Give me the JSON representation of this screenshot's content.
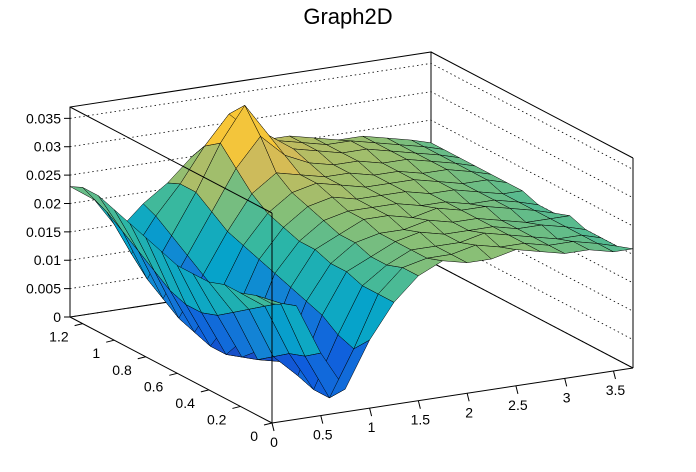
{
  "chart_data": {
    "type": "surface3d",
    "title": "Graph2D",
    "xlabel": "",
    "ylabel": "",
    "zlabel": "",
    "xlim": [
      0,
      3.7
    ],
    "ylim": [
      0,
      1.28
    ],
    "zlim": [
      0,
      0.037
    ],
    "x_ticks": [
      "0",
      "0.5",
      "1",
      "1.5",
      "2",
      "2.5",
      "3",
      "3.5"
    ],
    "y_ticks": [
      "0",
      "0.2",
      "0.4",
      "0.6",
      "0.8",
      "1",
      "1.2"
    ],
    "z_ticks": [
      "0",
      "0.005",
      "0.01",
      "0.015",
      "0.02",
      "0.025",
      "0.03",
      "0.035"
    ],
    "colormap": [
      "#352a87",
      "#0f5cdd",
      "#1481d6",
      "#06a4ca",
      "#2eb7a4",
      "#87bf77",
      "#d1bb59",
      "#fec832",
      "#f9fb0e"
    ],
    "x_grid": [
      0,
      0.25,
      0.5,
      0.75,
      1,
      1.25,
      1.5,
      1.75,
      2,
      2.25,
      2.5,
      2.75,
      3,
      3.25,
      3.5,
      3.7
    ],
    "y_grid": [
      0,
      0.1,
      0.2,
      0.3,
      0.4,
      0.5,
      0.6,
      0.7,
      0.8,
      0.9,
      1.0,
      1.1,
      1.2,
      1.28
    ],
    "z_values": [
      [
        0.021,
        0.02,
        0.011,
        0.004,
        0.012,
        0.018,
        0.022,
        0.024,
        0.023,
        0.023,
        0.024,
        0.023,
        0.022,
        0.022,
        0.021,
        0.021
      ],
      [
        0.021,
        0.019,
        0.009,
        0.001,
        0.009,
        0.018,
        0.022,
        0.023,
        0.023,
        0.024,
        0.023,
        0.023,
        0.022,
        0.022,
        0.021,
        0.02
      ],
      [
        0.02,
        0.017,
        0.008,
        0.001,
        0.01,
        0.018,
        0.021,
        0.023,
        0.023,
        0.023,
        0.024,
        0.023,
        0.022,
        0.021,
        0.021,
        0.02
      ],
      [
        0.02,
        0.015,
        0.006,
        0.002,
        0.012,
        0.019,
        0.021,
        0.023,
        0.024,
        0.023,
        0.023,
        0.023,
        0.022,
        0.022,
        0.021,
        0.02
      ],
      [
        0.019,
        0.013,
        0.004,
        0.003,
        0.013,
        0.019,
        0.022,
        0.023,
        0.023,
        0.024,
        0.023,
        0.023,
        0.022,
        0.021,
        0.021,
        0.021
      ],
      [
        0.019,
        0.011,
        0.003,
        0.004,
        0.014,
        0.02,
        0.022,
        0.024,
        0.024,
        0.023,
        0.024,
        0.023,
        0.023,
        0.022,
        0.021,
        0.02
      ],
      [
        0.019,
        0.01,
        0.002,
        0.005,
        0.015,
        0.02,
        0.023,
        0.024,
        0.024,
        0.024,
        0.023,
        0.023,
        0.022,
        0.022,
        0.021,
        0.02
      ],
      [
        0.02,
        0.01,
        0.002,
        0.007,
        0.016,
        0.021,
        0.024,
        0.025,
        0.024,
        0.024,
        0.024,
        0.023,
        0.023,
        0.022,
        0.021,
        0.021
      ],
      [
        0.021,
        0.011,
        0.003,
        0.009,
        0.017,
        0.022,
        0.025,
        0.026,
        0.025,
        0.024,
        0.024,
        0.024,
        0.023,
        0.022,
        0.022,
        0.021
      ],
      [
        0.022,
        0.013,
        0.004,
        0.011,
        0.018,
        0.024,
        0.027,
        0.026,
        0.025,
        0.025,
        0.024,
        0.024,
        0.023,
        0.023,
        0.022,
        0.021
      ],
      [
        0.023,
        0.015,
        0.006,
        0.013,
        0.02,
        0.027,
        0.032,
        0.028,
        0.026,
        0.025,
        0.025,
        0.024,
        0.024,
        0.023,
        0.022,
        0.021
      ],
      [
        0.024,
        0.017,
        0.008,
        0.015,
        0.022,
        0.03,
        0.036,
        0.03,
        0.027,
        0.026,
        0.025,
        0.025,
        0.024,
        0.023,
        0.022,
        0.021
      ],
      [
        0.024,
        0.019,
        0.011,
        0.017,
        0.022,
        0.028,
        0.033,
        0.029,
        0.027,
        0.026,
        0.025,
        0.025,
        0.024,
        0.023,
        0.022,
        0.021
      ],
      [
        0.023,
        0.02,
        0.014,
        0.018,
        0.021,
        0.025,
        0.028,
        0.027,
        0.026,
        0.026,
        0.025,
        0.024,
        0.024,
        0.023,
        0.022,
        0.021
      ]
    ]
  }
}
